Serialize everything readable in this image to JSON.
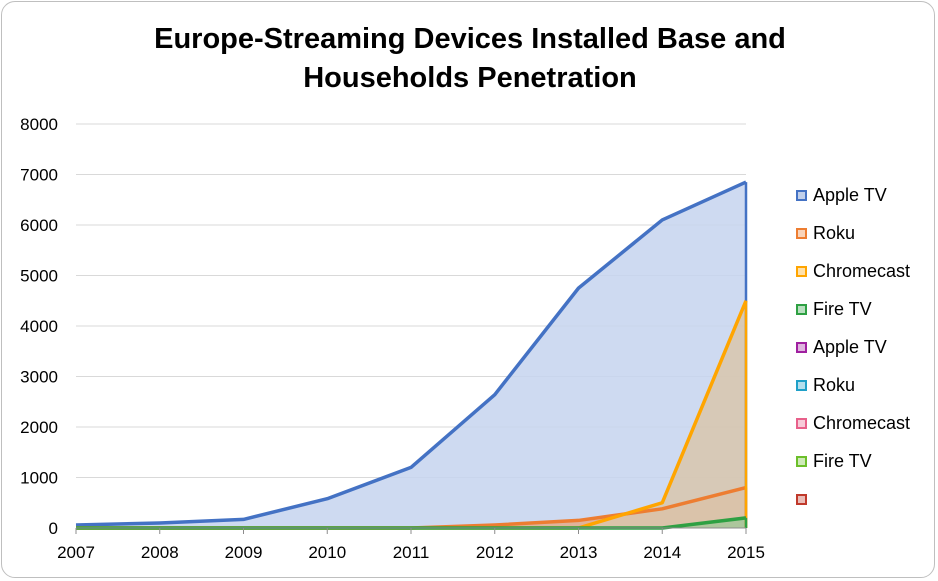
{
  "chart_data": {
    "type": "area",
    "title": "Europe-Streaming Devices Installed Base and Households Penetration",
    "title_lines": [
      "Europe-Streaming Devices Installed Base and",
      "Households Penetration"
    ],
    "x": [
      "2007",
      "2008",
      "2009",
      "2010",
      "2011",
      "2012",
      "2013",
      "2014",
      "2015"
    ],
    "ylim": [
      0,
      8000
    ],
    "yticks": [
      0,
      1000,
      2000,
      3000,
      4000,
      5000,
      6000,
      7000,
      8000
    ],
    "grid": true,
    "legend_position": "right",
    "series": [
      {
        "name": "Apple TV",
        "values": [
          60,
          100,
          170,
          580,
          1200,
          2640,
          4750,
          6100,
          6850
        ],
        "color": "#4472C4",
        "fill": "#c5d3ee"
      },
      {
        "name": "Roku",
        "values": [
          0,
          0,
          0,
          0,
          0,
          60,
          150,
          380,
          800
        ],
        "color": "#ED7D31",
        "fill": "#e3ab8c"
      },
      {
        "name": "Chromecast",
        "values": [
          0,
          0,
          0,
          0,
          0,
          0,
          0,
          500,
          4500
        ],
        "color": "#FFA500",
        "fill": "#d8c5ad"
      },
      {
        "name": "Fire TV",
        "values": [
          0,
          0,
          0,
          0,
          0,
          0,
          0,
          0,
          200
        ],
        "color": "#2EA043",
        "fill": "#a3c79a"
      }
    ],
    "legend": [
      {
        "name": "Apple TV",
        "color": "#4472C4"
      },
      {
        "name": "Roku",
        "color": "#ED7D31"
      },
      {
        "name": "Chromecast",
        "color": "#FFA500"
      },
      {
        "name": "Fire TV",
        "color": "#2EA043"
      },
      {
        "name": "Apple TV",
        "color": "#A020A0"
      },
      {
        "name": "Roku",
        "color": "#1FA0C8"
      },
      {
        "name": "Chromecast",
        "color": "#E8608A"
      },
      {
        "name": "Fire TV",
        "color": "#6CBF2A"
      },
      {
        "name": "",
        "color": "#C0392B"
      }
    ]
  }
}
